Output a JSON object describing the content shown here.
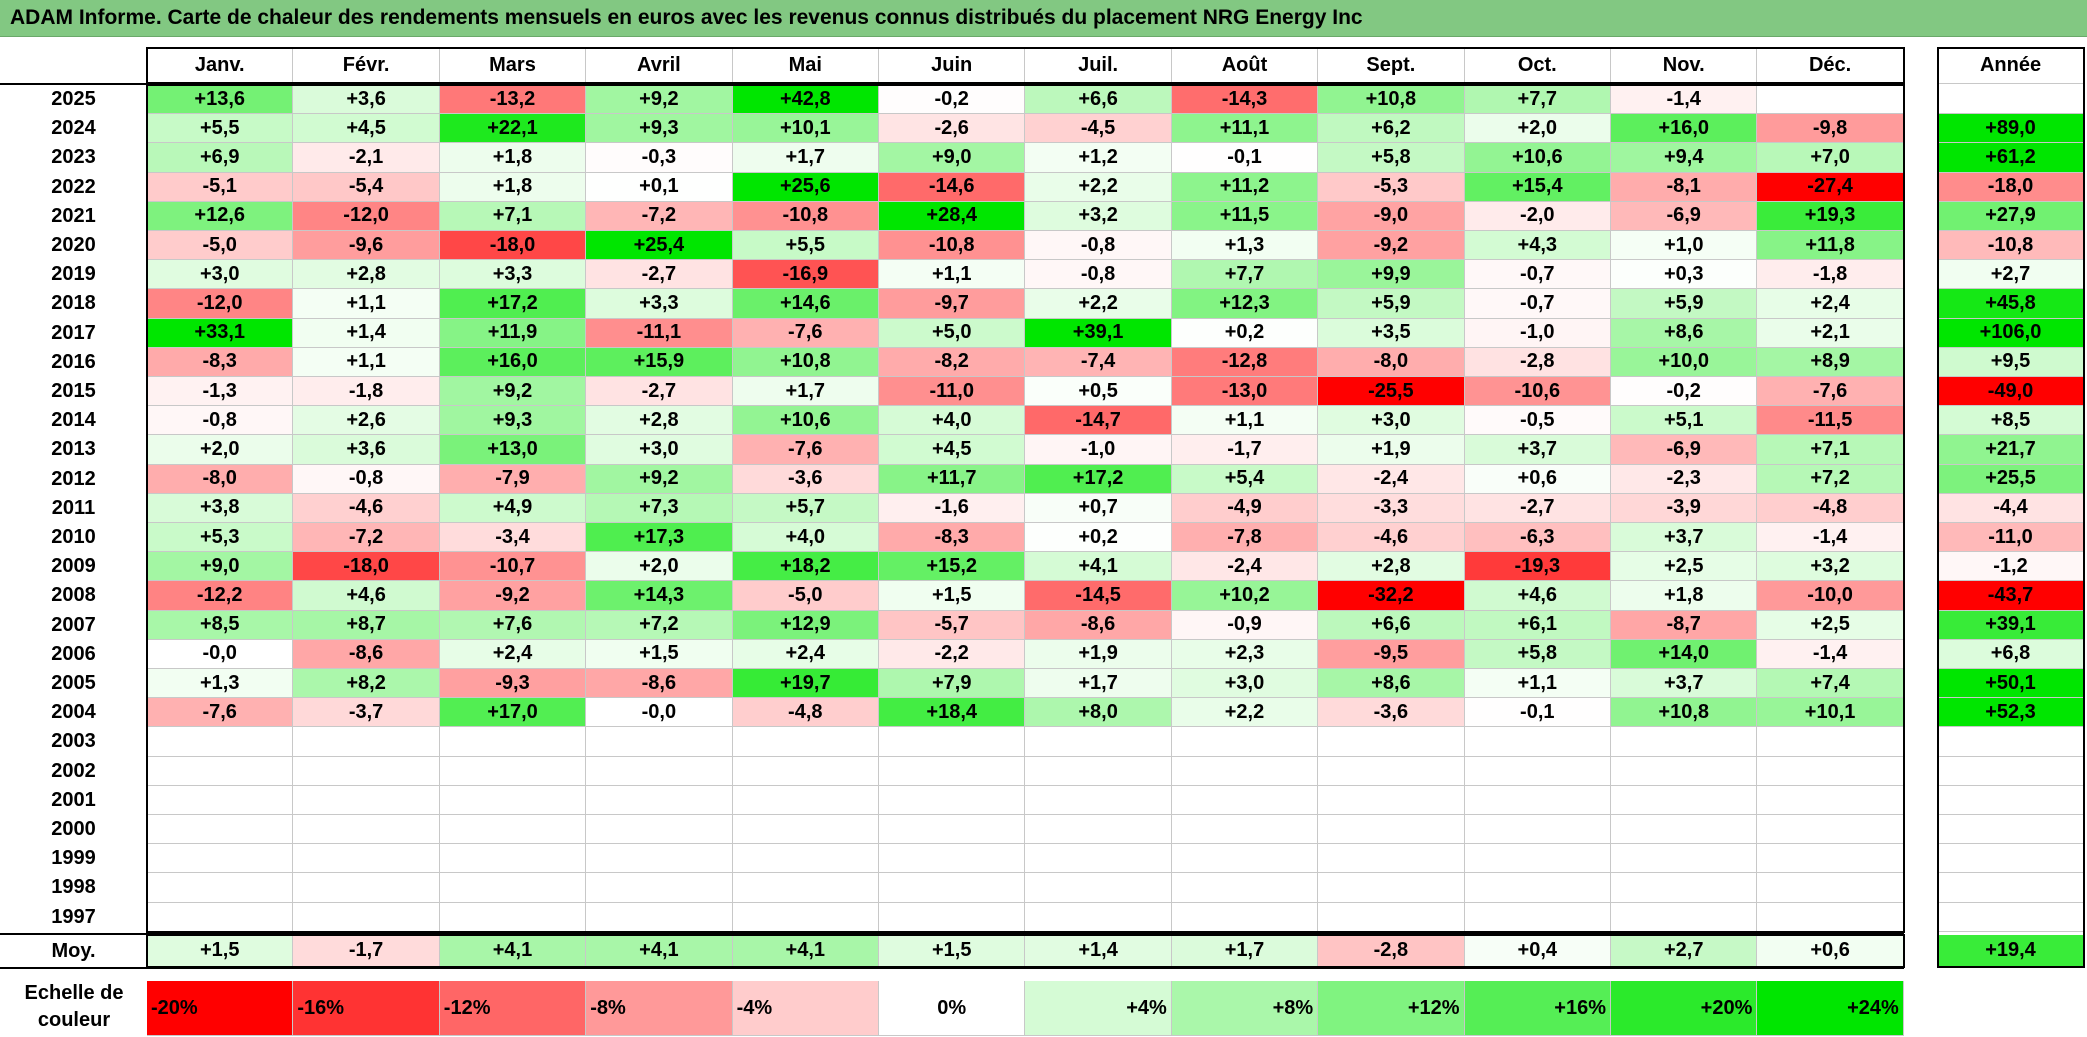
{
  "title": "ADAM Informe. Carte de chaleur des rendements mensuels en euros avec les revenus connus distribués du placement NRG Energy Inc",
  "chart_data": {
    "type": "heatmap",
    "months": [
      "Janv.",
      "Févr.",
      "Mars",
      "Avril",
      "Mai",
      "Juin",
      "Juil.",
      "Août",
      "Sept.",
      "Oct.",
      "Nov.",
      "Déc."
    ],
    "year_header": "Année",
    "rows": [
      {
        "year": "2025",
        "values": [
          "+13,6",
          "+3,6",
          "-13,2",
          "+9,2",
          "+42,8",
          "-0,2",
          "+6,6",
          "-14,3",
          "+10,8",
          "+7,7",
          "-1,4",
          ""
        ],
        "annual": ""
      },
      {
        "year": "2024",
        "values": [
          "+5,5",
          "+4,5",
          "+22,1",
          "+9,3",
          "+10,1",
          "-2,6",
          "-4,5",
          "+11,1",
          "+6,2",
          "+2,0",
          "+16,0",
          "-9,8"
        ],
        "annual": "+89,0"
      },
      {
        "year": "2023",
        "values": [
          "+6,9",
          "-2,1",
          "+1,8",
          "-0,3",
          "+1,7",
          "+9,0",
          "+1,2",
          "-0,1",
          "+5,8",
          "+10,6",
          "+9,4",
          "+7,0"
        ],
        "annual": "+61,2"
      },
      {
        "year": "2022",
        "values": [
          "-5,1",
          "-5,4",
          "+1,8",
          "+0,1",
          "+25,6",
          "-14,6",
          "+2,2",
          "+11,2",
          "-5,3",
          "+15,4",
          "-8,1",
          "-27,4"
        ],
        "annual": "-18,0"
      },
      {
        "year": "2021",
        "values": [
          "+12,6",
          "-12,0",
          "+7,1",
          "-7,2",
          "-10,8",
          "+28,4",
          "+3,2",
          "+11,5",
          "-9,0",
          "-2,0",
          "-6,9",
          "+19,3"
        ],
        "annual": "+27,9"
      },
      {
        "year": "2020",
        "values": [
          "-5,0",
          "-9,6",
          "-18,0",
          "+25,4",
          "+5,5",
          "-10,8",
          "-0,8",
          "+1,3",
          "-9,2",
          "+4,3",
          "+1,0",
          "+11,8"
        ],
        "annual": "-10,8"
      },
      {
        "year": "2019",
        "values": [
          "+3,0",
          "+2,8",
          "+3,3",
          "-2,7",
          "-16,9",
          "+1,1",
          "-0,8",
          "+7,7",
          "+9,9",
          "-0,7",
          "+0,3",
          "-1,8"
        ],
        "annual": "+2,7"
      },
      {
        "year": "2018",
        "values": [
          "-12,0",
          "+1,1",
          "+17,2",
          "+3,3",
          "+14,6",
          "-9,7",
          "+2,2",
          "+12,3",
          "+5,9",
          "-0,7",
          "+5,9",
          "+2,4"
        ],
        "annual": "+45,8"
      },
      {
        "year": "2017",
        "values": [
          "+33,1",
          "+1,4",
          "+11,9",
          "-11,1",
          "-7,6",
          "+5,0",
          "+39,1",
          "+0,2",
          "+3,5",
          "-1,0",
          "+8,6",
          "+2,1"
        ],
        "annual": "+106,0"
      },
      {
        "year": "2016",
        "values": [
          "-8,3",
          "+1,1",
          "+16,0",
          "+15,9",
          "+10,8",
          "-8,2",
          "-7,4",
          "-12,8",
          "-8,0",
          "-2,8",
          "+10,0",
          "+8,9"
        ],
        "annual": "+9,5"
      },
      {
        "year": "2015",
        "values": [
          "-1,3",
          "-1,8",
          "+9,2",
          "-2,7",
          "+1,7",
          "-11,0",
          "+0,5",
          "-13,0",
          "-25,5",
          "-10,6",
          "-0,2",
          "-7,6"
        ],
        "annual": "-49,0"
      },
      {
        "year": "2014",
        "values": [
          "-0,8",
          "+2,6",
          "+9,3",
          "+2,8",
          "+10,6",
          "+4,0",
          "-14,7",
          "+1,1",
          "+3,0",
          "-0,5",
          "+5,1",
          "-11,5"
        ],
        "annual": "+8,5"
      },
      {
        "year": "2013",
        "values": [
          "+2,0",
          "+3,6",
          "+13,0",
          "+3,0",
          "-7,6",
          "+4,5",
          "-1,0",
          "-1,7",
          "+1,9",
          "+3,7",
          "-6,9",
          "+7,1"
        ],
        "annual": "+21,7"
      },
      {
        "year": "2012",
        "values": [
          "-8,0",
          "-0,8",
          "-7,9",
          "+9,2",
          "-3,6",
          "+11,7",
          "+17,2",
          "+5,4",
          "-2,4",
          "+0,6",
          "-2,3",
          "+7,2"
        ],
        "annual": "+25,5"
      },
      {
        "year": "2011",
        "values": [
          "+3,8",
          "-4,6",
          "+4,9",
          "+7,3",
          "+5,7",
          "-1,6",
          "+0,7",
          "-4,9",
          "-3,3",
          "-2,7",
          "-3,9",
          "-4,8"
        ],
        "annual": "-4,4"
      },
      {
        "year": "2010",
        "values": [
          "+5,3",
          "-7,2",
          "-3,4",
          "+17,3",
          "+4,0",
          "-8,3",
          "+0,2",
          "-7,8",
          "-4,6",
          "-6,3",
          "+3,7",
          "-1,4"
        ],
        "annual": "-11,0"
      },
      {
        "year": "2009",
        "values": [
          "+9,0",
          "-18,0",
          "-10,7",
          "+2,0",
          "+18,2",
          "+15,2",
          "+4,1",
          "-2,4",
          "+2,8",
          "-19,3",
          "+2,5",
          "+3,2"
        ],
        "annual": "-1,2"
      },
      {
        "year": "2008",
        "values": [
          "-12,2",
          "+4,6",
          "-9,2",
          "+14,3",
          "-5,0",
          "+1,5",
          "-14,5",
          "+10,2",
          "-32,2",
          "+4,6",
          "+1,8",
          "-10,0"
        ],
        "annual": "-43,7"
      },
      {
        "year": "2007",
        "values": [
          "+8,5",
          "+8,7",
          "+7,6",
          "+7,2",
          "+12,9",
          "-5,7",
          "-8,6",
          "-0,9",
          "+6,6",
          "+6,1",
          "-8,7",
          "+2,5"
        ],
        "annual": "+39,1"
      },
      {
        "year": "2006",
        "values": [
          "-0,0",
          "-8,6",
          "+2,4",
          "+1,5",
          "+2,4",
          "-2,2",
          "+1,9",
          "+2,3",
          "-9,5",
          "+5,8",
          "+14,0",
          "-1,4"
        ],
        "annual": "+6,8"
      },
      {
        "year": "2005",
        "values": [
          "+1,3",
          "+8,2",
          "-9,3",
          "-8,6",
          "+19,7",
          "+7,9",
          "+1,7",
          "+3,0",
          "+8,6",
          "+1,1",
          "+3,7",
          "+7,4"
        ],
        "annual": "+50,1"
      },
      {
        "year": "2004",
        "values": [
          "-7,6",
          "-3,7",
          "+17,0",
          "-0,0",
          "-4,8",
          "+18,4",
          "+8,0",
          "+2,2",
          "-3,6",
          "-0,1",
          "+10,8",
          "+10,1"
        ],
        "annual": "+52,3"
      },
      {
        "year": "2003",
        "values": [
          "",
          "",
          "",
          "",
          "",
          "",
          "",
          "",
          "",
          "",
          "",
          ""
        ],
        "annual": ""
      },
      {
        "year": "2002",
        "values": [
          "",
          "",
          "",
          "",
          "",
          "",
          "",
          "",
          "",
          "",
          "",
          ""
        ],
        "annual": ""
      },
      {
        "year": "2001",
        "values": [
          "",
          "",
          "",
          "",
          "",
          "",
          "",
          "",
          "",
          "",
          "",
          ""
        ],
        "annual": ""
      },
      {
        "year": "2000",
        "values": [
          "",
          "",
          "",
          "",
          "",
          "",
          "",
          "",
          "",
          "",
          "",
          ""
        ],
        "annual": ""
      },
      {
        "year": "1999",
        "values": [
          "",
          "",
          "",
          "",
          "",
          "",
          "",
          "",
          "",
          "",
          "",
          ""
        ],
        "annual": ""
      },
      {
        "year": "1998",
        "values": [
          "",
          "",
          "",
          "",
          "",
          "",
          "",
          "",
          "",
          "",
          "",
          ""
        ],
        "annual": ""
      },
      {
        "year": "1997",
        "values": [
          "",
          "",
          "",
          "",
          "",
          "",
          "",
          "",
          "",
          "",
          "",
          ""
        ],
        "annual": ""
      }
    ],
    "average": {
      "label": "Moy.",
      "values": [
        "+1,5",
        "-1,7",
        "+4,1",
        "+4,1",
        "+4,1",
        "+1,5",
        "+1,4",
        "+1,7",
        "-2,8",
        "+0,4",
        "+2,7",
        "+0,6"
      ],
      "annual": "+19,4"
    },
    "legend": {
      "label_line1": "Echelle de",
      "label_line2": "couleur",
      "steps": [
        "-20%",
        "-16%",
        "-12%",
        "-8%",
        "-4%",
        "0%",
        "+4%",
        "+8%",
        "+12%",
        "+16%",
        "+20%",
        "+24%"
      ],
      "step_values": [
        -20,
        -16,
        -12,
        -8,
        -4,
        0,
        4,
        8,
        12,
        16,
        20,
        24
      ]
    },
    "colors": {
      "negative_max": "#ff0000",
      "neutral": "#ffffff",
      "positive_max": "#00e600"
    }
  }
}
